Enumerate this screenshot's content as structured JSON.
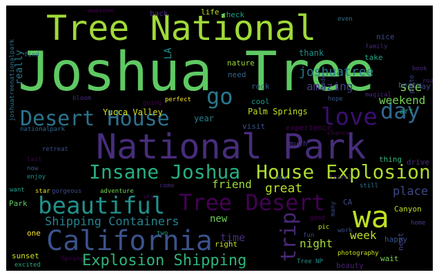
{
  "words": [
    {
      "text": "Joshua Tree",
      "color": "#5ec962"
    },
    {
      "text": "National Park",
      "color": "#472d7b"
    },
    {
      "text": "Tree National",
      "color": "#a0da39"
    },
    {
      "text": "California",
      "color": "#3b528b"
    },
    {
      "text": "wa",
      "color": "#bddf26"
    },
    {
      "text": "beautiful",
      "color": "#21918c"
    },
    {
      "text": "Desert House",
      "color": "#2c728e"
    },
    {
      "text": "Tree Desert",
      "color": "#440154"
    },
    {
      "text": "Insane Joshua",
      "color": "#28ae80"
    },
    {
      "text": "House Explosion",
      "color": "#addc30"
    },
    {
      "text": "love",
      "color": "#3b0f70"
    },
    {
      "text": "day",
      "color": "#31688e"
    },
    {
      "text": "go",
      "color": "#2a788e"
    },
    {
      "text": "trip",
      "color": "#482878"
    },
    {
      "text": "Explosion Shipping",
      "color": "#2fb47c"
    },
    {
      "text": "Shipping Containers",
      "color": "#26828e"
    },
    {
      "text": "joshuatree",
      "color": "#2a788e"
    },
    {
      "text": "amazing",
      "color": "#433e85"
    },
    {
      "text": "see",
      "color": "#7ad151"
    },
    {
      "text": "weekend",
      "color": "#75d054"
    },
    {
      "text": "great",
      "color": "#b5de2b"
    },
    {
      "text": "place",
      "color": "#3e4989"
    },
    {
      "text": "friend",
      "color": "#9fda3a"
    },
    {
      "text": "night",
      "color": "#a5db36"
    },
    {
      "text": "week",
      "color": "#bddf26"
    },
    {
      "text": "time",
      "color": "#472f7d"
    },
    {
      "text": "new",
      "color": "#6ece58"
    },
    {
      "text": "Palm Springs",
      "color": "#c2df23"
    },
    {
      "text": "experience",
      "color": "#440154"
    },
    {
      "text": "Yucca Valley",
      "color": "#d8e219"
    },
    {
      "text": "year",
      "color": "#26828e"
    },
    {
      "text": "really",
      "color": "#2a788e"
    },
    {
      "text": "LA",
      "color": "#21918c"
    },
    {
      "text": "thank",
      "color": "#21918c"
    },
    {
      "text": "nature",
      "color": "#9fda3a"
    },
    {
      "text": "need",
      "color": "#31688e"
    },
    {
      "text": "rock",
      "color": "#355f8d"
    },
    {
      "text": "take",
      "color": "#22a884"
    },
    {
      "text": "best",
      "color": "#3b528b"
    },
    {
      "text": "May",
      "color": "#3e4a89"
    },
    {
      "text": "art",
      "color": "#1fa088"
    },
    {
      "text": "cool",
      "color": "#1f998a"
    },
    {
      "text": "perfect",
      "color": "#fde725"
    },
    {
      "text": "visit",
      "color": "#3b528b"
    },
    {
      "text": "much",
      "color": "#46327e"
    },
    {
      "text": "thing",
      "color": "#31b57b"
    },
    {
      "text": "drive",
      "color": "#472c7a"
    },
    {
      "text": "retreat",
      "color": "#3e4c8a"
    },
    {
      "text": "last",
      "color": "#440154"
    },
    {
      "text": "now",
      "color": "#3b528b"
    },
    {
      "text": "enjoy",
      "color": "#21918c"
    },
    {
      "text": "want",
      "color": "#1fa088"
    },
    {
      "text": "star",
      "color": "#e5e419"
    },
    {
      "text": "gorgeous",
      "color": "#3e4989"
    },
    {
      "text": "adventure",
      "color": "#73d056"
    },
    {
      "text": "come",
      "color": "#482878"
    },
    {
      "text": "sky",
      "color": "#440154"
    },
    {
      "text": "way",
      "color": "#39568c"
    },
    {
      "text": "travel",
      "color": "#482071"
    },
    {
      "text": "still",
      "color": "#2c728e"
    },
    {
      "text": "Park",
      "color": "#5ec962"
    },
    {
      "text": "CA",
      "color": "#3e4989"
    },
    {
      "text": "Canyon",
      "color": "#bddf26"
    },
    {
      "text": "one",
      "color": "#fde725"
    },
    {
      "text": "good",
      "color": "#440154"
    },
    {
      "text": "pic",
      "color": "#c8e020"
    },
    {
      "text": "work",
      "color": "#3b528b"
    },
    {
      "text": "happy",
      "color": "#3b528b"
    },
    {
      "text": "two",
      "color": "#1f9e89"
    },
    {
      "text": "right",
      "color": "#c2df23"
    },
    {
      "text": "fun",
      "color": "#3e4989"
    },
    {
      "text": "photography",
      "color": "#c8e020"
    },
    {
      "text": "wait",
      "color": "#7ad151"
    },
    {
      "text": "home",
      "color": "#433e85"
    },
    {
      "text": "beauty",
      "color": "#482173"
    },
    {
      "text": "sunset",
      "color": "#d2e21b"
    },
    {
      "text": "excited",
      "color": "#22a884"
    },
    {
      "text": "Spring",
      "color": "#440154"
    },
    {
      "text": "Tree NP",
      "color": "#21918c"
    },
    {
      "text": "next",
      "color": "#414487"
    },
    {
      "text": "many",
      "color": "#3e4989"
    },
    {
      "text": "awesome",
      "color": "#440154"
    },
    {
      "text": "back",
      "color": "#482878"
    },
    {
      "text": "life",
      "color": "#c2df23"
    },
    {
      "text": "check",
      "color": "#1fa088"
    },
    {
      "text": "even",
      "color": "#2c728e"
    },
    {
      "text": "nice",
      "color": "#3e4989"
    },
    {
      "text": "family",
      "color": "#482878"
    },
    {
      "text": "find",
      "color": "#2c728e"
    },
    {
      "text": "joshuatreenationalpark",
      "color": "#2c728e"
    },
    {
      "text": "nationalpark",
      "color": "#31688e"
    },
    {
      "text": "bloom",
      "color": "#482878"
    },
    {
      "text": "going",
      "color": "#440154"
    },
    {
      "text": "made",
      "color": "#3e4989"
    },
    {
      "text": "hope",
      "color": "#3b528b"
    },
    {
      "text": "magical",
      "color": "#482878"
    },
    {
      "text": "book",
      "color": "#482878"
    },
    {
      "text": "photo",
      "color": "#3e4989"
    },
    {
      "text": "road",
      "color": "#482878"
    },
    {
      "text": "chance",
      "color": "#440154"
    }
  ]
}
